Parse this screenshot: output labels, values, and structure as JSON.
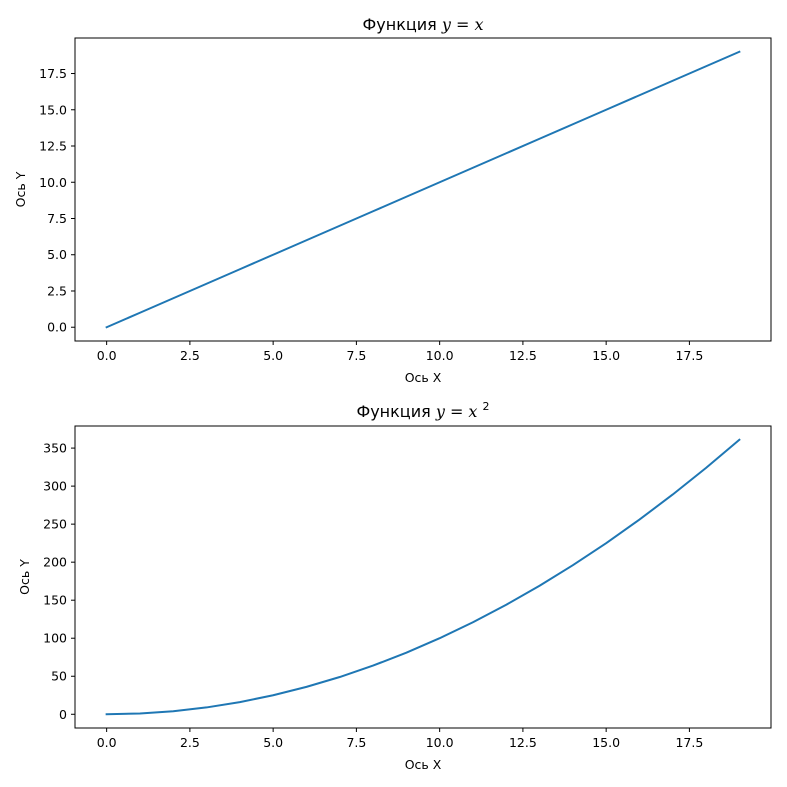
{
  "chart_data": [
    {
      "type": "line",
      "title": {
        "prefix": "Функция",
        "math": "y = x",
        "superscript": ""
      },
      "xlabel": "Ось X",
      "ylabel": "Ось Y",
      "xlim": [
        -0.95,
        19.95
      ],
      "ylim": [
        -0.95,
        19.95
      ],
      "xticks": [
        "0.0",
        "2.5",
        "5.0",
        "7.5",
        "10.0",
        "12.5",
        "15.0",
        "17.5"
      ],
      "yticks": [
        "0.0",
        "2.5",
        "5.0",
        "7.5",
        "10.0",
        "12.5",
        "15.0",
        "17.5"
      ],
      "grid": false,
      "color": "#1f77b4",
      "series": [
        {
          "x": [
            0,
            1,
            2,
            3,
            4,
            5,
            6,
            7,
            8,
            9,
            10,
            11,
            12,
            13,
            14,
            15,
            16,
            17,
            18,
            19
          ],
          "y": [
            0,
            1,
            2,
            3,
            4,
            5,
            6,
            7,
            8,
            9,
            10,
            11,
            12,
            13,
            14,
            15,
            16,
            17,
            18,
            19
          ]
        }
      ]
    },
    {
      "type": "line",
      "title": {
        "prefix": "Функция",
        "math": "y = x",
        "superscript": "2"
      },
      "xlabel": "Ось X",
      "ylabel": "Ось Y",
      "xlim": [
        -0.95,
        19.95
      ],
      "ylim": [
        -18.05,
        379.05
      ],
      "xticks": [
        "0.0",
        "2.5",
        "5.0",
        "7.5",
        "10.0",
        "12.5",
        "15.0",
        "17.5"
      ],
      "yticks": [
        "0",
        "50",
        "100",
        "150",
        "200",
        "250",
        "300",
        "350"
      ],
      "grid": false,
      "color": "#1f77b4",
      "series": [
        {
          "x": [
            0,
            1,
            2,
            3,
            4,
            5,
            6,
            7,
            8,
            9,
            10,
            11,
            12,
            13,
            14,
            15,
            16,
            17,
            18,
            19
          ],
          "y": [
            0,
            1,
            4,
            9,
            16,
            25,
            36,
            49,
            64,
            81,
            100,
            121,
            144,
            169,
            196,
            225,
            256,
            289,
            324,
            361
          ]
        }
      ]
    }
  ]
}
